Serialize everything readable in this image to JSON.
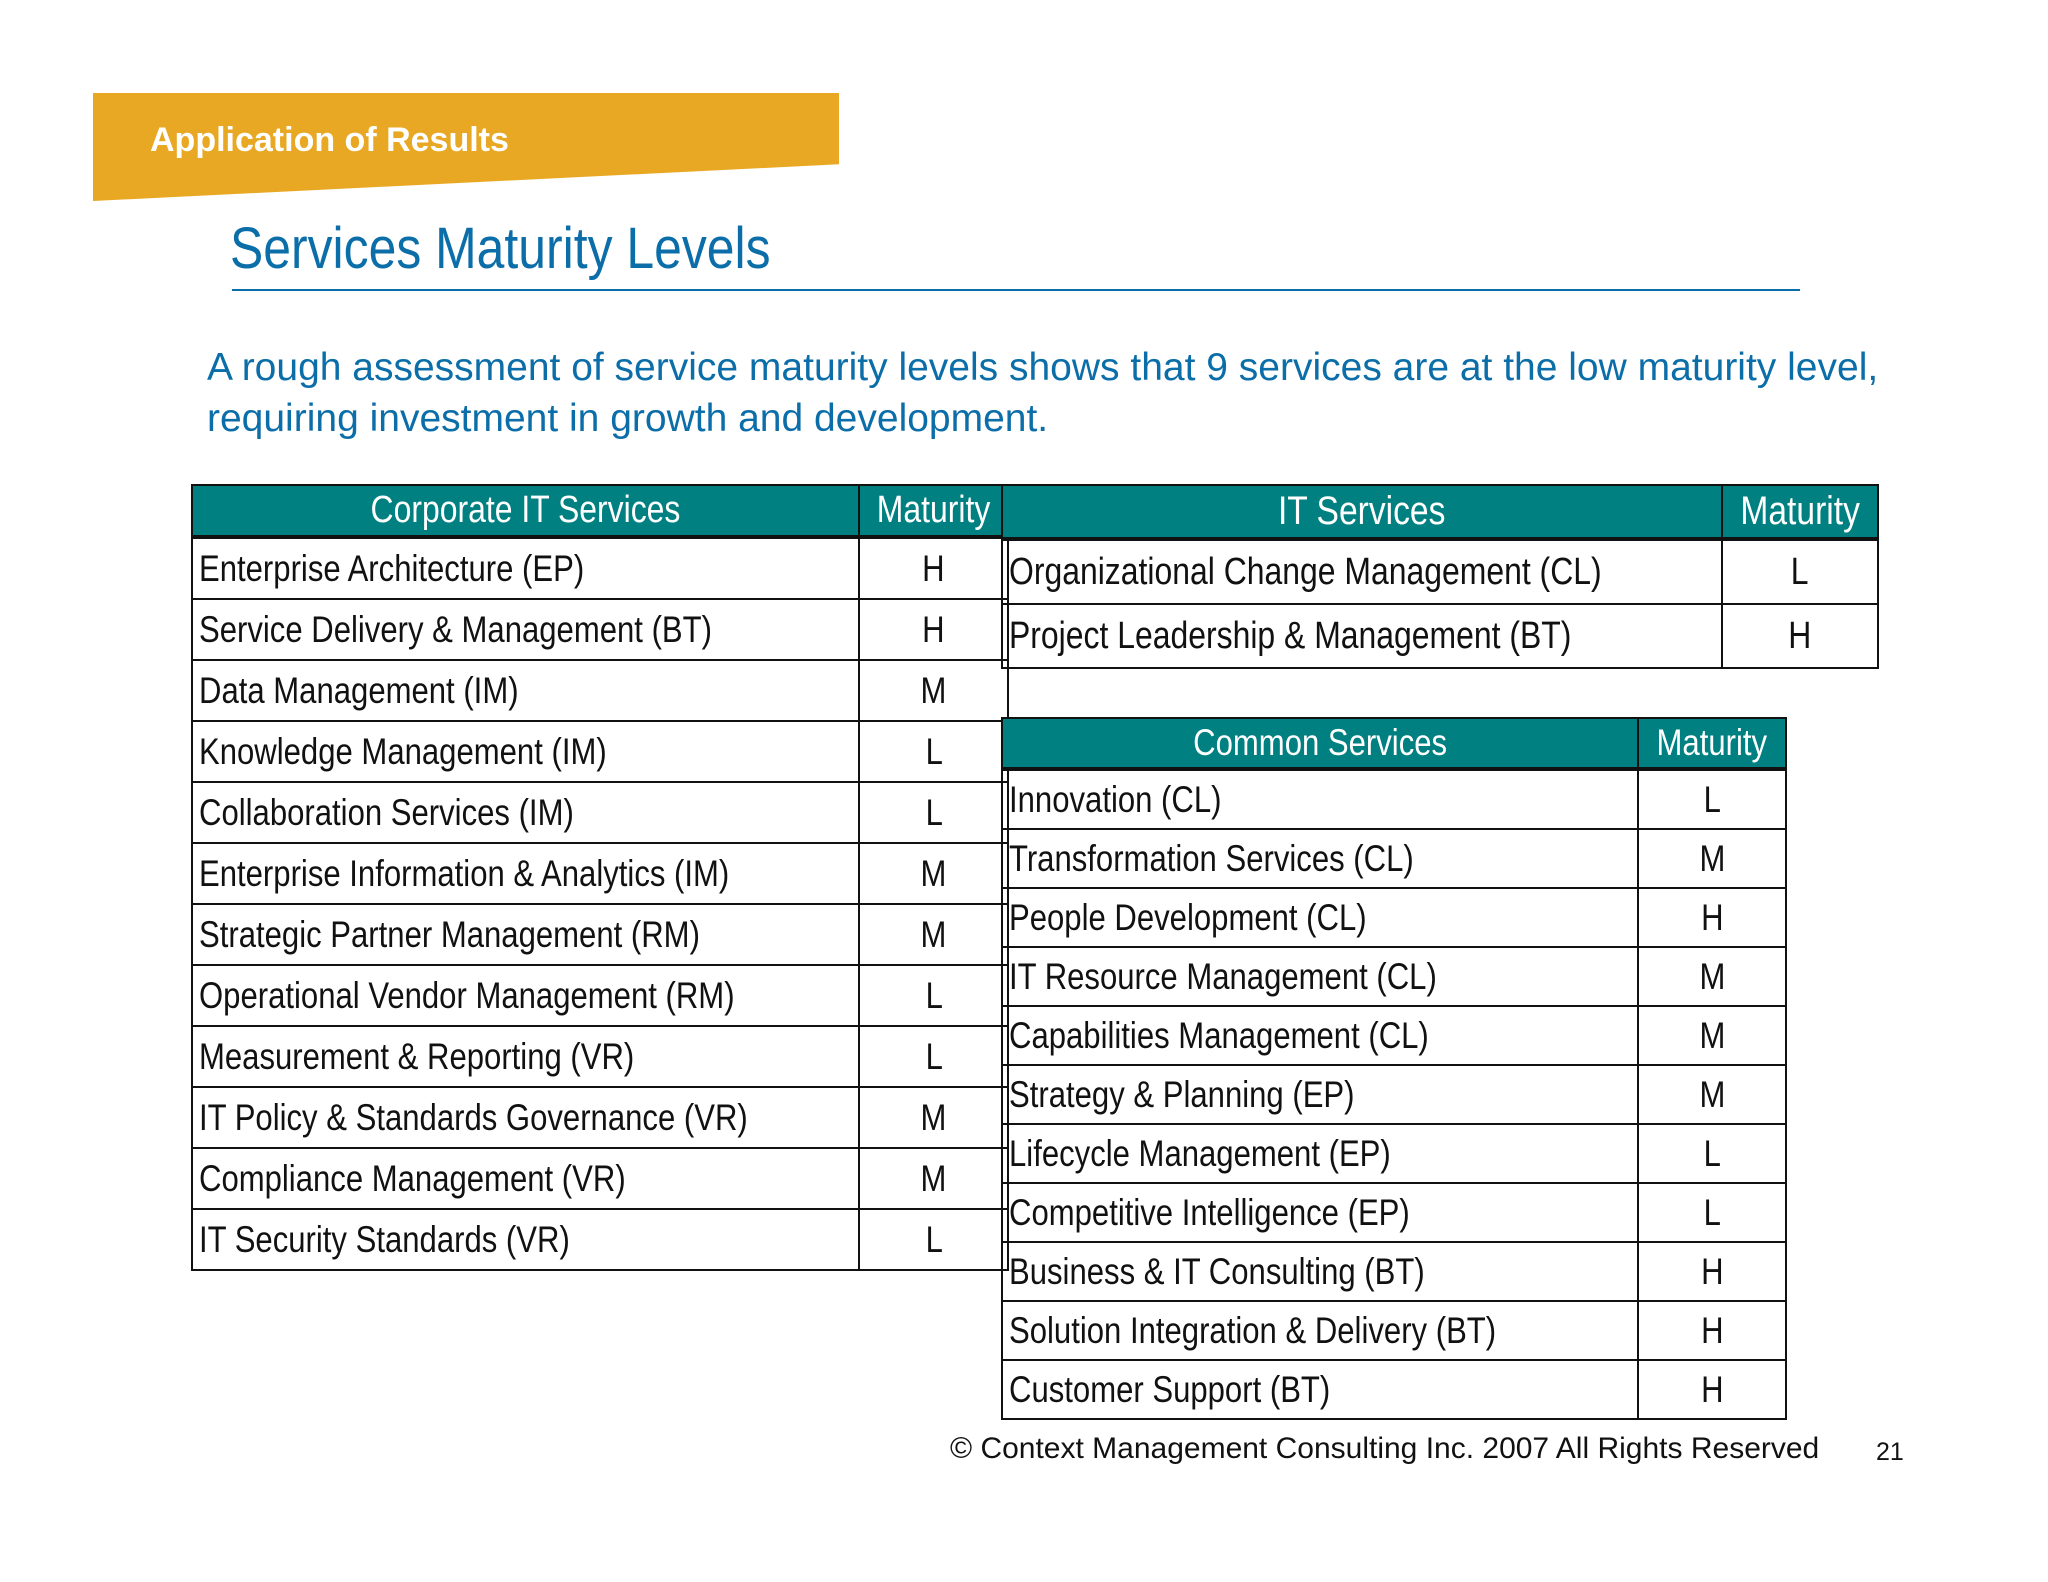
{
  "header": {
    "section_label": "Application of Results",
    "title": "Services Maturity Levels",
    "subtitle": "A rough assessment of service maturity levels shows that 9 services are at the low maturity level, requiring investment in growth and development.",
    "banner_color": "#e8a823",
    "title_color": "#0c6ea8"
  },
  "tables": {
    "corporate": {
      "header_name": "Corporate IT Services",
      "header_maturity": "Maturity",
      "rows": [
        {
          "name": "Enterprise Architecture (EP)",
          "maturity": "H"
        },
        {
          "name": "Service Delivery & Management (BT)",
          "maturity": "H"
        },
        {
          "name": "Data Management (IM)",
          "maturity": "M"
        },
        {
          "name": "Knowledge Management (IM)",
          "maturity": "L"
        },
        {
          "name": "Collaboration Services (IM)",
          "maturity": "L"
        },
        {
          "name": "Enterprise Information & Analytics (IM)",
          "maturity": "M"
        },
        {
          "name": "Strategic Partner Management (RM)",
          "maturity": "M"
        },
        {
          "name": "Operational Vendor Management (RM)",
          "maturity": "L"
        },
        {
          "name": "Measurement & Reporting (VR)",
          "maturity": "L"
        },
        {
          "name": "IT Policy & Standards Governance (VR)",
          "maturity": "M"
        },
        {
          "name": "Compliance Management (VR)",
          "maturity": "M"
        },
        {
          "name": "IT Security Standards (VR)",
          "maturity": "L"
        }
      ]
    },
    "it": {
      "header_name": "IT Services",
      "header_maturity": "Maturity",
      "rows": [
        {
          "name": "Organizational Change Management (CL)",
          "maturity": "L"
        },
        {
          "name": "Project Leadership & Management (BT)",
          "maturity": "H"
        }
      ]
    },
    "common": {
      "header_name": "Common Services",
      "header_maturity": "Maturity",
      "rows": [
        {
          "name": "Innovation (CL)",
          "maturity": "L"
        },
        {
          "name": "Transformation Services (CL)",
          "maturity": "M"
        },
        {
          "name": "People Development (CL)",
          "maturity": "H"
        },
        {
          "name": "IT Resource Management (CL)",
          "maturity": "M"
        },
        {
          "name": "Capabilities Management (CL)",
          "maturity": "M"
        },
        {
          "name": "Strategy & Planning (EP)",
          "maturity": "M"
        },
        {
          "name": "Lifecycle Management (EP)",
          "maturity": "L"
        },
        {
          "name": "Competitive Intelligence (EP)",
          "maturity": "L"
        },
        {
          "name": "Business & IT Consulting (BT)",
          "maturity": "H"
        },
        {
          "name": "Solution Integration & Delivery (BT)",
          "maturity": "H"
        },
        {
          "name": "Customer Support (BT)",
          "maturity": "H"
        }
      ]
    },
    "header_color": "#008080"
  },
  "footer": {
    "copyright": "© Context Management Consulting Inc. 2007 All Rights Reserved",
    "page_number": "21"
  }
}
